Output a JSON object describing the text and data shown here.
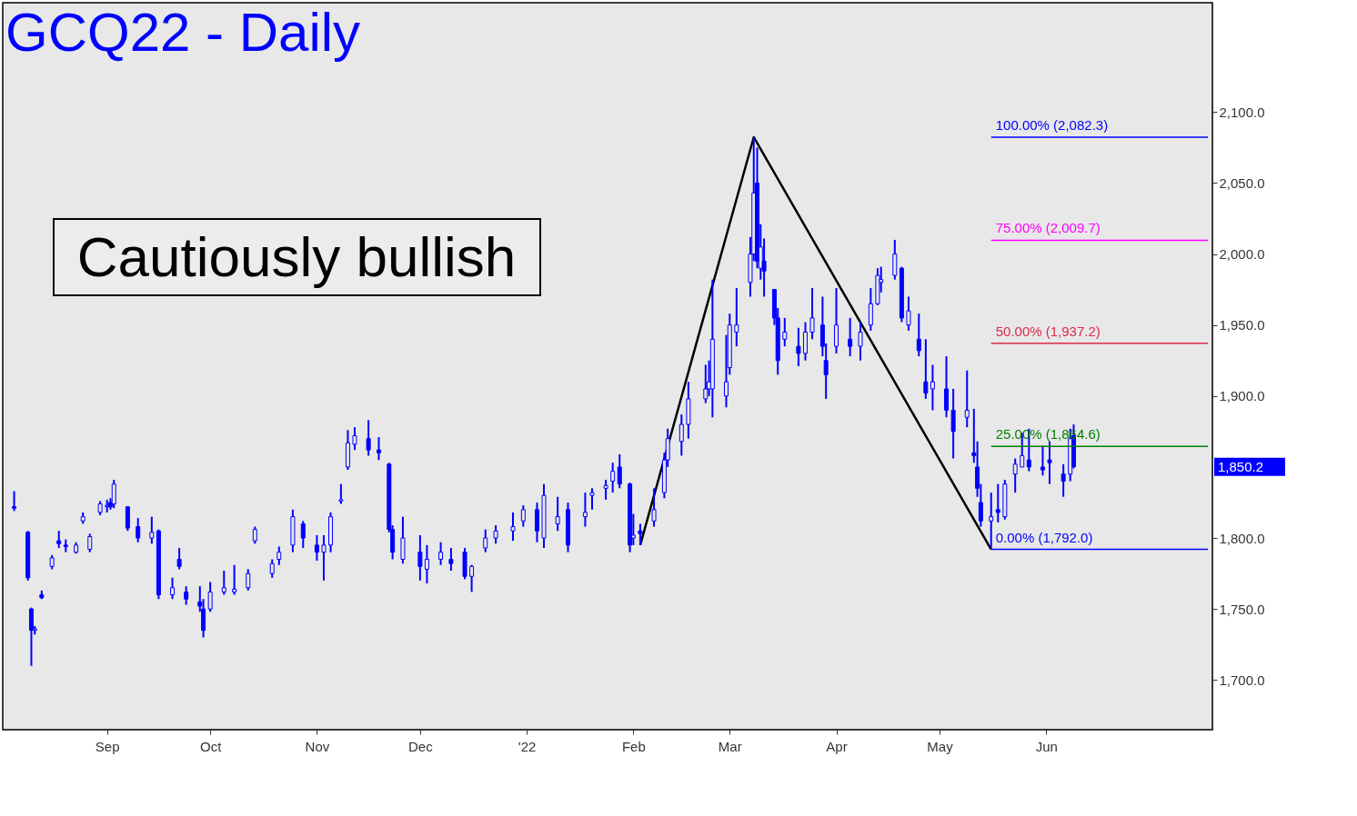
{
  "chart_data": {
    "type": "candlestick",
    "title": "GCQ22 - Daily",
    "xlim": [
      "2021-08-03",
      "2022-07-18"
    ],
    "xticks": [
      {
        "value": "2021-09-01",
        "label": "Sep"
      },
      {
        "value": "2021-10-01",
        "label": "Oct"
      },
      {
        "value": "2021-11-01",
        "label": "Nov"
      },
      {
        "value": "2021-12-01",
        "label": "Dec"
      },
      {
        "value": "2022-01-01",
        "label": "'22"
      },
      {
        "value": "2022-02-01",
        "label": "Feb"
      },
      {
        "value": "2022-03-01",
        "label": "Mar"
      },
      {
        "value": "2022-04-01",
        "label": "Apr"
      },
      {
        "value": "2022-05-01",
        "label": "May"
      },
      {
        "value": "2022-06-01",
        "label": "Jun"
      }
    ],
    "ylim": [
      1665,
      2177
    ],
    "yticks": [
      {
        "value": 1700,
        "label": "1,700.0"
      },
      {
        "value": 1750,
        "label": "1,750.0"
      },
      {
        "value": 1800,
        "label": "1,800.0"
      },
      {
        "value": 1900,
        "label": "1,900.0"
      },
      {
        "value": 1950,
        "label": "1,950.0"
      },
      {
        "value": 2000,
        "label": "2,000.0"
      },
      {
        "value": 2050,
        "label": "2,050.0"
      },
      {
        "value": 2100,
        "label": "2,100.0"
      }
    ],
    "grid": false,
    "series": [
      {
        "type": "candlestick",
        "color": "#0000ff",
        "x": [
          "2021-08-05",
          "2021-08-09",
          "2021-08-10",
          "2021-08-11",
          "2021-08-13",
          "2021-08-16",
          "2021-08-18",
          "2021-08-20",
          "2021-08-23",
          "2021-08-25",
          "2021-08-27",
          "2021-08-30",
          "2021-09-01",
          "2021-09-02",
          "2021-09-03",
          "2021-09-07",
          "2021-09-10",
          "2021-09-14",
          "2021-09-16",
          "2021-09-20",
          "2021-09-22",
          "2021-09-24",
          "2021-09-28",
          "2021-09-29",
          "2021-10-01",
          "2021-10-05",
          "2021-10-08",
          "2021-10-12",
          "2021-10-14",
          "2021-10-19",
          "2021-10-21",
          "2021-10-25",
          "2021-10-28",
          "2021-11-01",
          "2021-11-03",
          "2021-11-05",
          "2021-11-08",
          "2021-11-10",
          "2021-11-12",
          "2021-11-16",
          "2021-11-19",
          "2021-11-22",
          "2021-11-23",
          "2021-11-26",
          "2021-12-01",
          "2021-12-03",
          "2021-12-07",
          "2021-12-10",
          "2021-12-14",
          "2021-12-16",
          "2021-12-20",
          "2021-12-23",
          "2021-12-28",
          "2021-12-31",
          "2022-01-04",
          "2022-01-06",
          "2022-01-10",
          "2022-01-13",
          "2022-01-18",
          "2022-01-20",
          "2022-01-24",
          "2022-01-26",
          "2022-01-28",
          "2022-01-31",
          "2022-02-01",
          "2022-02-03",
          "2022-02-07",
          "2022-02-10",
          "2022-02-11",
          "2022-02-15",
          "2022-02-17",
          "2022-02-22",
          "2022-02-23",
          "2022-02-24",
          "2022-02-28",
          "2022-03-01",
          "2022-03-03",
          "2022-03-07",
          "2022-03-08",
          "2022-03-09",
          "2022-03-10",
          "2022-03-11",
          "2022-03-14",
          "2022-03-15",
          "2022-03-17",
          "2022-03-21",
          "2022-03-23",
          "2022-03-25",
          "2022-03-28",
          "2022-03-29",
          "2022-04-01",
          "2022-04-05",
          "2022-04-08",
          "2022-04-11",
          "2022-04-13",
          "2022-04-14",
          "2022-04-18",
          "2022-04-20",
          "2022-04-22",
          "2022-04-25",
          "2022-04-27",
          "2022-04-29",
          "2022-05-03",
          "2022-05-05",
          "2022-05-09",
          "2022-05-11",
          "2022-05-12",
          "2022-05-13",
          "2022-05-16",
          "2022-05-18",
          "2022-05-20",
          "2022-05-23",
          "2022-05-25",
          "2022-05-27",
          "2022-05-31",
          "2022-06-02",
          "2022-06-06",
          "2022-06-08",
          "2022-06-09"
        ],
        "ohlc": [
          [
            1822,
            1833,
            1819,
            1821
          ],
          [
            1804,
            1805,
            1770,
            1772
          ],
          [
            1750,
            1751,
            1710,
            1735
          ],
          [
            1735,
            1738,
            1732,
            1736
          ],
          [
            1760,
            1763,
            1757,
            1758
          ],
          [
            1780,
            1788,
            1778,
            1786
          ],
          [
            1798,
            1805,
            1793,
            1796
          ],
          [
            1795,
            1799,
            1790,
            1794
          ],
          [
            1790,
            1797,
            1789,
            1795
          ],
          [
            1812,
            1818,
            1810,
            1815
          ],
          [
            1792,
            1803,
            1790,
            1801
          ],
          [
            1818,
            1826,
            1816,
            1824
          ],
          [
            1822,
            1827,
            1818,
            1823
          ],
          [
            1825,
            1828,
            1820,
            1822
          ],
          [
            1824,
            1841,
            1821,
            1838
          ],
          [
            1822,
            1822,
            1805,
            1807
          ],
          [
            1808,
            1814,
            1797,
            1800
          ],
          [
            1800,
            1815,
            1796,
            1804
          ],
          [
            1805,
            1806,
            1757,
            1760
          ],
          [
            1760,
            1772,
            1757,
            1765
          ],
          [
            1785,
            1793,
            1778,
            1780
          ],
          [
            1762,
            1766,
            1753,
            1757
          ],
          [
            1755,
            1766,
            1748,
            1752
          ],
          [
            1750,
            1757,
            1730,
            1735
          ],
          [
            1750,
            1769,
            1748,
            1762
          ],
          [
            1762,
            1777,
            1760,
            1765
          ],
          [
            1762,
            1781,
            1760,
            1764
          ],
          [
            1765,
            1778,
            1763,
            1775
          ],
          [
            1798,
            1808,
            1796,
            1806
          ],
          [
            1775,
            1785,
            1772,
            1782
          ],
          [
            1785,
            1794,
            1781,
            1790
          ],
          [
            1795,
            1820,
            1790,
            1815
          ],
          [
            1810,
            1812,
            1793,
            1800
          ],
          [
            1795,
            1802,
            1784,
            1790
          ],
          [
            1790,
            1802,
            1770,
            1795
          ],
          [
            1795,
            1818,
            1790,
            1815
          ],
          [
            1826,
            1838,
            1824,
            1827
          ],
          [
            1850,
            1876,
            1848,
            1867
          ],
          [
            1866,
            1878,
            1862,
            1872
          ],
          [
            1870,
            1883,
            1858,
            1862
          ],
          [
            1862,
            1871,
            1855,
            1860
          ],
          [
            1852,
            1853,
            1804,
            1806
          ],
          [
            1806,
            1809,
            1785,
            1790
          ],
          [
            1785,
            1815,
            1782,
            1800
          ],
          [
            1790,
            1802,
            1770,
            1780
          ],
          [
            1778,
            1795,
            1768,
            1785
          ],
          [
            1785,
            1797,
            1781,
            1790
          ],
          [
            1785,
            1793,
            1777,
            1782
          ],
          [
            1790,
            1793,
            1771,
            1773
          ],
          [
            1773,
            1781,
            1762,
            1780
          ],
          [
            1793,
            1806,
            1790,
            1800
          ],
          [
            1800,
            1809,
            1796,
            1805
          ],
          [
            1805,
            1818,
            1798,
            1808
          ],
          [
            1812,
            1823,
            1808,
            1820
          ],
          [
            1820,
            1825,
            1797,
            1805
          ],
          [
            1800,
            1838,
            1793,
            1830
          ],
          [
            1810,
            1829,
            1805,
            1815
          ],
          [
            1820,
            1825,
            1790,
            1795
          ],
          [
            1815,
            1832,
            1808,
            1818
          ],
          [
            1830,
            1835,
            1820,
            1832
          ],
          [
            1835,
            1841,
            1827,
            1837
          ],
          [
            1840,
            1853,
            1832,
            1847
          ],
          [
            1850,
            1859,
            1835,
            1838
          ],
          [
            1838,
            1839,
            1790,
            1795
          ],
          [
            1800,
            1817,
            1795,
            1802
          ],
          [
            1805,
            1810,
            1795,
            1803
          ],
          [
            1812,
            1835,
            1808,
            1820
          ],
          [
            1832,
            1860,
            1828,
            1855
          ],
          [
            1855,
            1877,
            1850,
            1870
          ],
          [
            1868,
            1887,
            1858,
            1880
          ],
          [
            1880,
            1910,
            1870,
            1898
          ],
          [
            1898,
            1922,
            1895,
            1905
          ],
          [
            1905,
            1925,
            1900,
            1910
          ],
          [
            1905,
            1982,
            1885,
            1940
          ],
          [
            1900,
            1943,
            1892,
            1910
          ],
          [
            1920,
            1958,
            1915,
            1950
          ],
          [
            1945,
            1976,
            1935,
            1950
          ],
          [
            1980,
            2012,
            1970,
            2000
          ],
          [
            2000,
            2082,
            1995,
            2043
          ],
          [
            2050,
            2075,
            1990,
            1995
          ],
          [
            1990,
            2021,
            1982,
            2005
          ],
          [
            1995,
            2011,
            1970,
            1988
          ],
          [
            1975,
            1975,
            1950,
            1955
          ],
          [
            1955,
            1962,
            1915,
            1925
          ],
          [
            1940,
            1955,
            1935,
            1945
          ],
          [
            1935,
            1948,
            1921,
            1930
          ],
          [
            1930,
            1952,
            1925,
            1945
          ],
          [
            1945,
            1976,
            1940,
            1955
          ],
          [
            1950,
            1970,
            1928,
            1935
          ],
          [
            1925,
            1937,
            1898,
            1915
          ],
          [
            1935,
            1976,
            1930,
            1950
          ],
          [
            1940,
            1955,
            1928,
            1935
          ],
          [
            1935,
            1952,
            1925,
            1945
          ],
          [
            1950,
            1976,
            1946,
            1965
          ],
          [
            1965,
            1990,
            1964,
            1985
          ],
          [
            1980,
            1991,
            1973,
            1982
          ],
          [
            1985,
            2010,
            1982,
            2000
          ],
          [
            1990,
            1991,
            1952,
            1955
          ],
          [
            1950,
            1970,
            1946,
            1960
          ],
          [
            1940,
            1958,
            1928,
            1932
          ],
          [
            1910,
            1940,
            1898,
            1902
          ],
          [
            1905,
            1922,
            1890,
            1910
          ],
          [
            1905,
            1928,
            1885,
            1890
          ],
          [
            1890,
            1905,
            1856,
            1875
          ],
          [
            1885,
            1918,
            1878,
            1890
          ],
          [
            1860,
            1891,
            1853,
            1858
          ],
          [
            1850,
            1868,
            1829,
            1835
          ],
          [
            1825,
            1838,
            1808,
            1812
          ],
          [
            1812,
            1832,
            1793,
            1815
          ],
          [
            1820,
            1838,
            1811,
            1818
          ],
          [
            1815,
            1841,
            1813,
            1838
          ],
          [
            1845,
            1856,
            1832,
            1852
          ],
          [
            1850,
            1874,
            1850,
            1858
          ],
          [
            1855,
            1877,
            1847,
            1850
          ],
          [
            1850,
            1865,
            1844,
            1848
          ],
          [
            1855,
            1868,
            1838,
            1853
          ],
          [
            1845,
            1852,
            1829,
            1840
          ],
          [
            1845,
            1877,
            1840,
            1870
          ],
          [
            1872,
            1880,
            1849,
            1850.2
          ]
        ]
      },
      {
        "type": "line",
        "color": "#000000",
        "x": [
          "2022-02-03",
          "2022-03-08",
          "2022-05-16"
        ],
        "values": [
          1795,
          2082.3,
          1792.0
        ]
      }
    ],
    "ref_lines": [
      {
        "axis": "y",
        "value": 2082.3,
        "label": "100.00% (2,082.3)",
        "color": "#0000ff"
      },
      {
        "axis": "y",
        "value": 2009.7,
        "label": "75.00% (2,009.7)",
        "color": "#ff00ff"
      },
      {
        "axis": "y",
        "value": 1937.2,
        "label": "50.00% (1,937.2)",
        "color": "#e0284a"
      },
      {
        "axis": "y",
        "value": 1864.6,
        "label": "25.00% (1,864.6)",
        "color": "#008000"
      },
      {
        "axis": "y",
        "value": 1792.0,
        "label": "0.00% (1,792.0)",
        "color": "#0000ff"
      }
    ],
    "annotations": [
      "Cautiously bullish",
      "1,850.2"
    ]
  }
}
